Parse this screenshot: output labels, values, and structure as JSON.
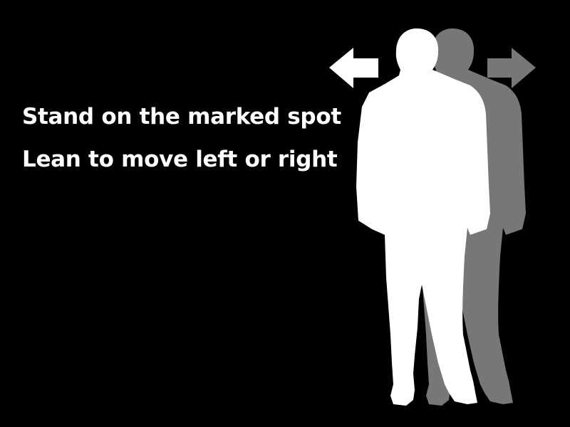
{
  "instructions": {
    "line1": "Stand on the marked spot",
    "line2": "Lean to move left or right"
  },
  "graphic": {
    "left_arrow_icon": "arrow-left-icon",
    "right_arrow_icon": "arrow-right-icon",
    "figure": "person-silhouette",
    "shadow_figure": "person-silhouette-leaning-right"
  },
  "colors": {
    "background": "#000000",
    "text": "#ffffff",
    "figure": "#ffffff",
    "shadow_figure": "#777777",
    "left_arrow": "#ffffff",
    "right_arrow": "#777777"
  }
}
